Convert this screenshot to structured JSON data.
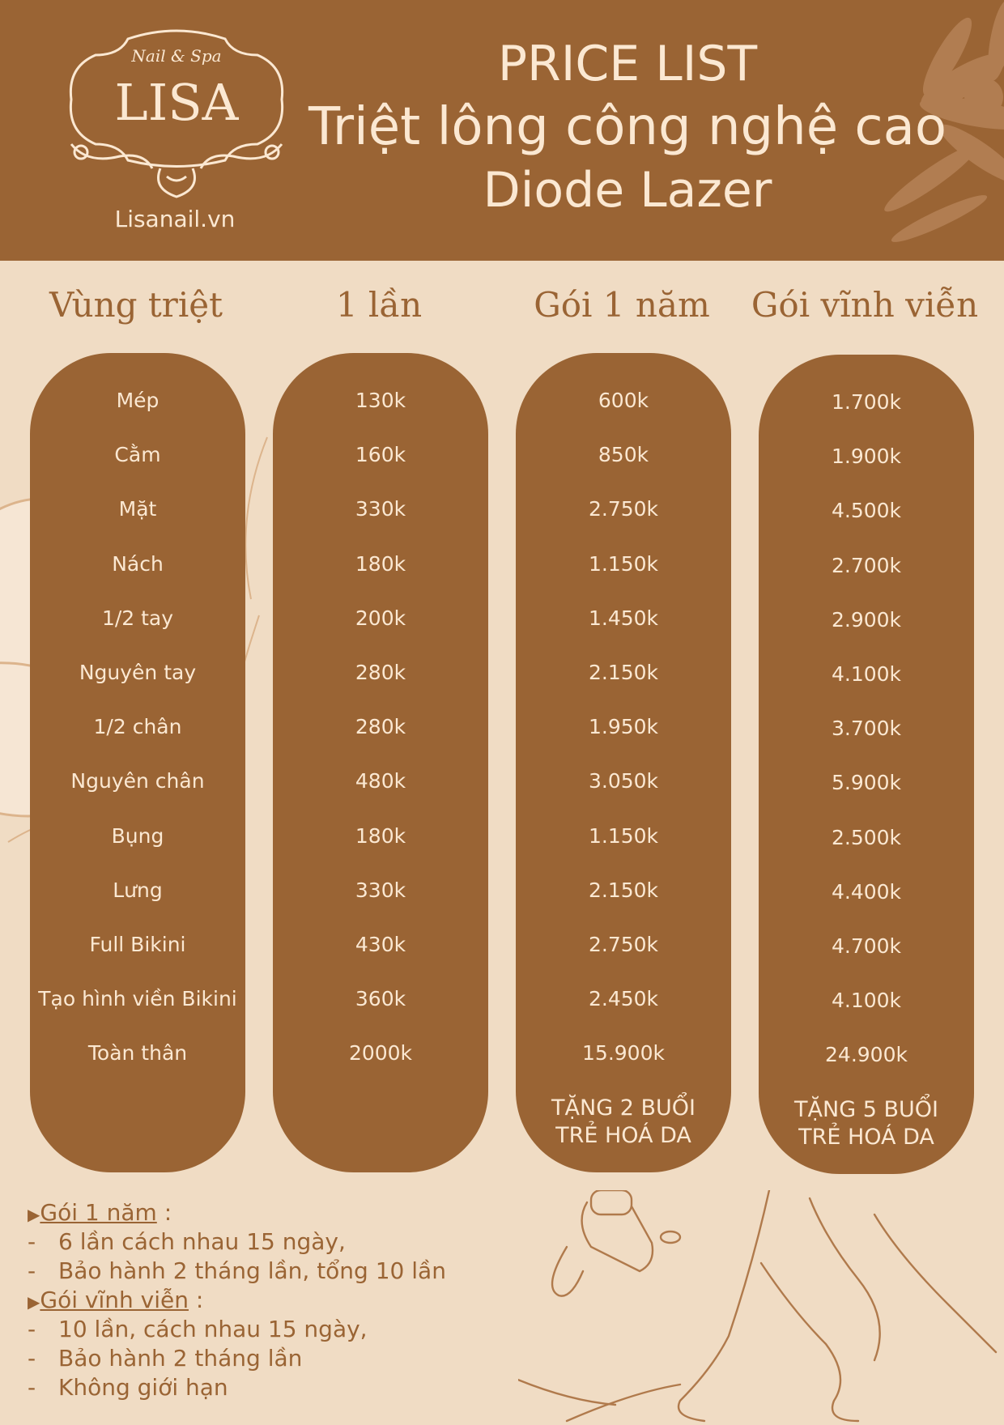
{
  "header": {
    "logo_small": "Nail & Spa",
    "logo_big": "LISA",
    "website": "Lisanail.vn",
    "title_lines": [
      "PRICE LIST",
      "Triệt lông công nghệ cao",
      "Diode Lazer"
    ]
  },
  "table": {
    "columns": [
      "Vùng triệt",
      "1 lần",
      "Gói 1 năm",
      "Gói vĩnh viễn"
    ],
    "rows": [
      [
        "Mép",
        "130k",
        "600k",
        "1.700k"
      ],
      [
        "Cằm",
        "160k",
        "850k",
        "1.900k"
      ],
      [
        "Mặt",
        "330k",
        "2.750k",
        "4.500k"
      ],
      [
        "Nách",
        "180k",
        "1.150k",
        "2.700k"
      ],
      [
        "1/2  tay",
        "200k",
        "1.450k",
        "2.900k"
      ],
      [
        "Nguyên tay",
        "280k",
        "2.150k",
        "4.100k"
      ],
      [
        "1/2 chân",
        "280k",
        "1.950k",
        "3.700k"
      ],
      [
        "Nguyên chân",
        "480k",
        "3.050k",
        "5.900k"
      ],
      [
        "Bụng",
        "180k",
        "1.150k",
        "2.500k"
      ],
      [
        "Lưng",
        "330k",
        "2.150k",
        "4.400k"
      ],
      [
        "Full Bikini",
        "430k",
        "2.750k",
        "4.700k"
      ],
      [
        "Tạo hình viền Bikini",
        "360k",
        "2.450k",
        "4.100k"
      ],
      [
        "Toàn thân",
        "2000k",
        "15.900k",
        "24.900k"
      ]
    ],
    "bonus_year": [
      "TẶNG 2 BUỔI",
      "TRẺ HOÁ DA"
    ],
    "bonus_forever": [
      "TẶNG 5 BUỔI",
      "TRẺ HOÁ DA"
    ]
  },
  "notes": {
    "year_title": "Gói 1 năm",
    "year_suffix": " :",
    "year_items": [
      "6 lần cách nhau 15 ngày,",
      "Bảo hành 2 tháng lần, tổng 10 lần"
    ],
    "forever_title": "Gói vĩnh viễn",
    "forever_suffix": " :",
    "forever_items": [
      "10 lần, cách nhau 15 ngày,",
      "Bảo hành 2 tháng lần",
      "Không giới hạn"
    ],
    "arrow_glyph": "▶",
    "dash_glyph": "-"
  },
  "colors": {
    "brown": "#9a6434",
    "cream": "#f0dcc4",
    "light_text": "#fbe8d2"
  }
}
